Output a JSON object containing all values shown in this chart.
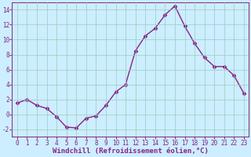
{
  "x": [
    0,
    1,
    2,
    3,
    4,
    5,
    6,
    7,
    8,
    9,
    10,
    11,
    12,
    13,
    14,
    15,
    16,
    17,
    18,
    19,
    20,
    21,
    22,
    23
  ],
  "y": [
    1.5,
    2.0,
    1.2,
    0.8,
    -0.3,
    -1.7,
    -1.8,
    -0.5,
    -0.2,
    1.2,
    3.0,
    4.0,
    8.5,
    10.5,
    11.5,
    13.3,
    14.5,
    11.8,
    9.5,
    7.6,
    6.4,
    6.4,
    5.2,
    2.8
  ],
  "line_color": "#882288",
  "marker": "D",
  "markersize": 2.5,
  "bg_color": "#cceeff",
  "grid_color": "#99ccbb",
  "xlabel": "Windchill (Refroidissement éolien,°C)",
  "xlabel_fontsize": 6.5,
  "tick_fontsize": 5.5,
  "ylim": [
    -3,
    15
  ],
  "yticks": [
    -2,
    0,
    2,
    4,
    6,
    8,
    10,
    12,
    14
  ],
  "xlim": [
    -0.5,
    23.5
  ],
  "linewidth": 1.0
}
